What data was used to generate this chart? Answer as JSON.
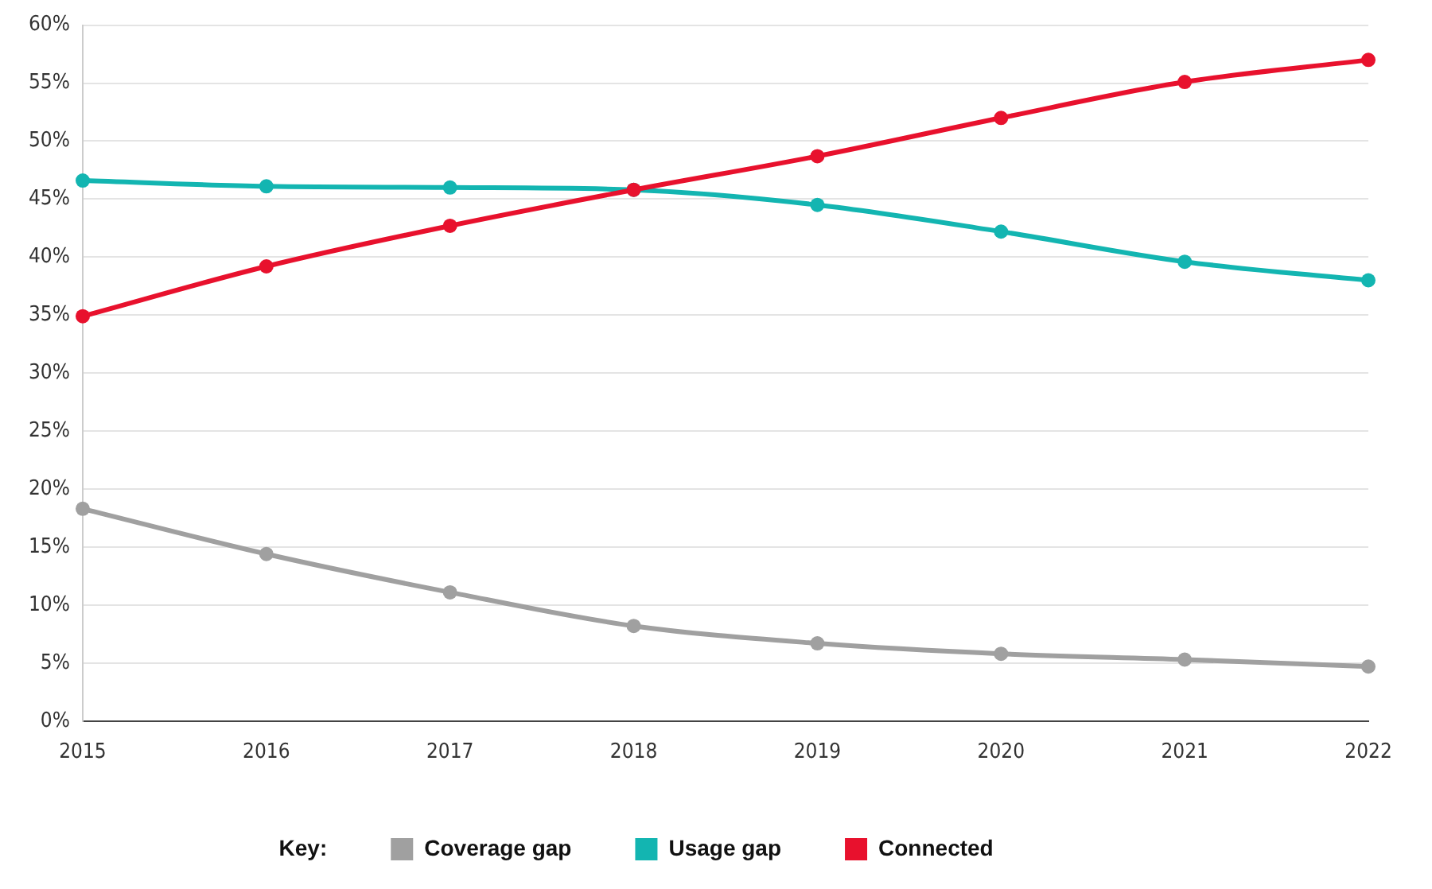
{
  "chart_data": {
    "type": "line",
    "categories": [
      "2015",
      "2016",
      "2017",
      "2018",
      "2019",
      "2020",
      "2021",
      "2022"
    ],
    "series": [
      {
        "name": "Coverage gap",
        "color": "#a0a0a0",
        "values": [
          18.3,
          14.4,
          11.1,
          8.2,
          6.7,
          5.8,
          5.3,
          4.7
        ]
      },
      {
        "name": "Usage gap",
        "color": "#13b5b1",
        "values": [
          46.6,
          46.1,
          46.0,
          45.8,
          44.5,
          42.2,
          39.6,
          38.0
        ]
      },
      {
        "name": "Connected",
        "color": "#e8112d",
        "values": [
          34.9,
          39.2,
          42.7,
          45.8,
          48.7,
          52.0,
          55.1,
          57.0
        ]
      }
    ],
    "ylim": [
      0,
      60
    ],
    "yticks": [
      {
        "value": 0,
        "label": "0%"
      },
      {
        "value": 5,
        "label": "5%"
      },
      {
        "value": 10,
        "label": "10%"
      },
      {
        "value": 15,
        "label": "15%"
      },
      {
        "value": 20,
        "label": "20%"
      },
      {
        "value": 25,
        "label": "25%"
      },
      {
        "value": 30,
        "label": "30%"
      },
      {
        "value": 35,
        "label": "35%"
      },
      {
        "value": 40,
        "label": "40%"
      },
      {
        "value": 45,
        "label": "45%"
      },
      {
        "value": 50,
        "label": "50%"
      },
      {
        "value": 55,
        "label": "55%"
      },
      {
        "value": 60,
        "label": "60%"
      }
    ],
    "grid": "y",
    "legend": "bottom",
    "legend_title": "Key:",
    "marker": "circle",
    "line_style": "solid"
  }
}
